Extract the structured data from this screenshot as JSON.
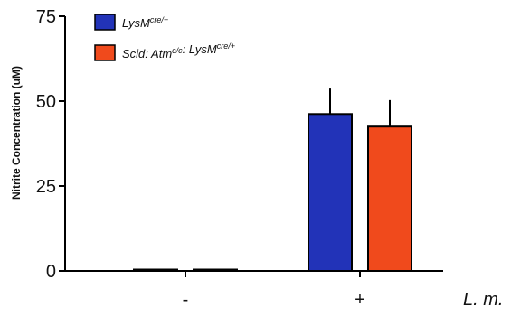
{
  "chart_data": {
    "type": "bar",
    "ylabel": "Nitrite Concentration (uM)",
    "xlabel": "L. m.",
    "ylim": [
      0,
      75
    ],
    "yticks": [
      0,
      25,
      50,
      75
    ],
    "categories": [
      "-",
      "+"
    ],
    "legend_position": "top-left",
    "series": [
      {
        "name_parts": [
          [
            "LysM",
            false
          ],
          [
            "cre/+",
            true
          ]
        ],
        "values": [
          0.3,
          46.2
        ],
        "errors": [
          0,
          7.5
        ],
        "color": "#2233b8"
      },
      {
        "name_parts": [
          [
            "Scid: Atm",
            false
          ],
          [
            "c/c",
            true
          ],
          [
            ": LysM",
            false
          ],
          [
            "cre/+",
            true
          ]
        ],
        "values": [
          0.3,
          42.5
        ],
        "errors": [
          0,
          7.8
        ],
        "color": "#f04a1c"
      }
    ]
  }
}
